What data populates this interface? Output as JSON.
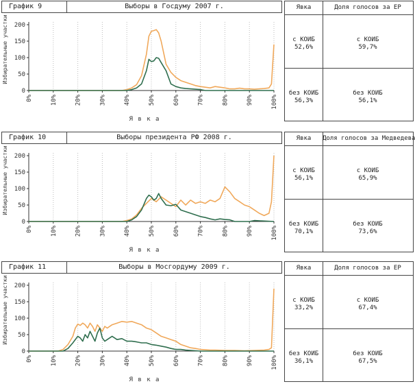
{
  "panels": [
    {
      "header": {
        "number": "График 9",
        "title": "Выборы в Госдуму 2007 г."
      },
      "table": {
        "col1_header": "Явка",
        "col2_header": "Доля голосов за ЕР",
        "rows": [
          {
            "label_turnout": "с КОИБ",
            "turnout": "52,6%",
            "label_share": "с КОИБ",
            "share": "59,7%"
          },
          {
            "label_turnout": "без КОИБ",
            "turnout": "56,3%",
            "label_share": "без КОИБ",
            "share": "56,1%"
          }
        ]
      }
    },
    {
      "header": {
        "number": "График 10",
        "title": "Выборы президента РФ 2008 г."
      },
      "table": {
        "col1_header": "Явка",
        "col2_header": "Доля голосов за Медведева",
        "rows": [
          {
            "label_turnout": "с КОИБ",
            "turnout": "56,1%",
            "label_share": "с КОИБ",
            "share": "65,9%"
          },
          {
            "label_turnout": "без КОИБ",
            "turnout": "70,1%",
            "label_share": "без КОИБ",
            "share": "73,6%"
          }
        ]
      }
    },
    {
      "header": {
        "number": "График 11",
        "title": "Выборы в Мосгордуму 2009 г."
      },
      "table": {
        "col1_header": "Явка",
        "col2_header": "Доля голосов за ЕР",
        "rows": [
          {
            "label_turnout": "с КОИБ",
            "turnout": "33,2%",
            "label_share": "с КОИБ",
            "share": "67,4%"
          },
          {
            "label_turnout": "без КОИБ",
            "turnout": "36,1%",
            "label_share": "без КОИБ",
            "share": "67,5%"
          }
        ]
      }
    }
  ],
  "colors": {
    "orange": "#f0a85a",
    "green": "#2f6e4e",
    "grid": "#bbbbbb",
    "axis": "#333333"
  },
  "chart_data": [
    {
      "type": "line",
      "ylabel": "Избирательные участки",
      "xlabel": "Я в к а",
      "xlim": [
        0,
        100
      ],
      "ylim": [
        0,
        200
      ],
      "x_ticks": [
        "0%",
        "10%",
        "20%",
        "30%",
        "40%",
        "50%",
        "60%",
        "70%",
        "80%",
        "90%",
        "100%"
      ],
      "y_ticks": [
        0,
        50,
        100,
        150,
        200
      ],
      "grid": true,
      "series": [
        {
          "color": "orange",
          "x": [
            0,
            38,
            40,
            42,
            44,
            46,
            48,
            49,
            50,
            51,
            52,
            53,
            54,
            56,
            58,
            60,
            62,
            64,
            66,
            68,
            70,
            72,
            74,
            76,
            78,
            80,
            82,
            84,
            86,
            88,
            90,
            92,
            94,
            96,
            98,
            99,
            100
          ],
          "y": [
            0,
            0,
            3,
            8,
            18,
            45,
            110,
            165,
            180,
            182,
            185,
            175,
            150,
            80,
            55,
            40,
            30,
            25,
            20,
            15,
            12,
            10,
            8,
            12,
            10,
            8,
            5,
            5,
            7,
            5,
            5,
            4,
            5,
            6,
            8,
            20,
            140
          ]
        },
        {
          "color": "green",
          "x": [
            0,
            40,
            42,
            44,
            46,
            48,
            49,
            50,
            51,
            52,
            53,
            54,
            56,
            58,
            60,
            62,
            64,
            66,
            68,
            70,
            72,
            80,
            100
          ],
          "y": [
            0,
            0,
            3,
            8,
            20,
            60,
            95,
            88,
            90,
            100,
            98,
            85,
            60,
            20,
            12,
            8,
            6,
            5,
            4,
            3,
            0,
            0,
            0
          ]
        }
      ]
    },
    {
      "type": "line",
      "ylabel": "Избирательные участки",
      "xlabel": "Я в к а",
      "xlim": [
        0,
        100
      ],
      "ylim": [
        0,
        200
      ],
      "x_ticks": [
        "0%",
        "10%",
        "20%",
        "30%",
        "40%",
        "50%",
        "60%",
        "70%",
        "80%",
        "90%",
        "100%"
      ],
      "y_ticks": [
        0,
        50,
        100,
        150,
        200
      ],
      "grid": true,
      "series": [
        {
          "color": "orange",
          "x": [
            0,
            38,
            40,
            42,
            44,
            46,
            48,
            50,
            52,
            54,
            56,
            58,
            60,
            62,
            64,
            66,
            68,
            70,
            72,
            74,
            76,
            78,
            80,
            82,
            84,
            86,
            88,
            90,
            92,
            94,
            96,
            98,
            99,
            100
          ],
          "y": [
            0,
            0,
            3,
            8,
            20,
            40,
            55,
            70,
            60,
            75,
            65,
            55,
            45,
            65,
            50,
            65,
            55,
            60,
            55,
            65,
            60,
            70,
            105,
            90,
            70,
            60,
            50,
            45,
            35,
            25,
            18,
            25,
            60,
            200
          ]
        },
        {
          "color": "green",
          "x": [
            0,
            40,
            42,
            44,
            46,
            48,
            49,
            50,
            51,
            52,
            53,
            54,
            56,
            58,
            60,
            62,
            64,
            66,
            68,
            70,
            72,
            74,
            76,
            78,
            80,
            82,
            84,
            90,
            92,
            100
          ],
          "y": [
            0,
            0,
            5,
            15,
            35,
            70,
            80,
            75,
            65,
            70,
            85,
            70,
            50,
            48,
            52,
            35,
            30,
            25,
            20,
            15,
            12,
            8,
            5,
            8,
            6,
            5,
            0,
            0,
            3,
            0
          ]
        }
      ]
    },
    {
      "type": "line",
      "ylabel": "Избирательные участки",
      "xlabel": "Я в к а",
      "xlim": [
        0,
        100
      ],
      "ylim": [
        0,
        200
      ],
      "x_ticks": [
        "0%",
        "10%",
        "20%",
        "30%",
        "40%",
        "50%",
        "60%",
        "70%",
        "80%",
        "90%",
        "100%"
      ],
      "y_ticks": [
        0,
        50,
        100,
        150,
        200
      ],
      "grid": true,
      "series": [
        {
          "color": "orange",
          "x": [
            0,
            12,
            14,
            16,
            18,
            19,
            20,
            21,
            22,
            23,
            24,
            25,
            26,
            27,
            28,
            29,
            30,
            31,
            32,
            34,
            36,
            38,
            40,
            42,
            44,
            46,
            48,
            50,
            52,
            54,
            56,
            58,
            60,
            62,
            64,
            66,
            68,
            70,
            72,
            74,
            76,
            80,
            84,
            88,
            92,
            96,
            98,
            99,
            100
          ],
          "y": [
            0,
            0,
            5,
            20,
            45,
            70,
            82,
            78,
            85,
            80,
            70,
            85,
            75,
            60,
            80,
            70,
            60,
            75,
            70,
            80,
            85,
            90,
            88,
            90,
            85,
            80,
            70,
            65,
            55,
            45,
            40,
            35,
            30,
            20,
            15,
            10,
            8,
            5,
            4,
            3,
            3,
            2,
            2,
            1,
            2,
            3,
            5,
            10,
            190
          ]
        },
        {
          "color": "green",
          "x": [
            0,
            14,
            16,
            18,
            20,
            21,
            22,
            23,
            24,
            25,
            26,
            27,
            28,
            29,
            30,
            31,
            32,
            34,
            36,
            38,
            40,
            42,
            44,
            46,
            48,
            50,
            52,
            54,
            56,
            58,
            60,
            62,
            64,
            66,
            70,
            100
          ],
          "y": [
            0,
            0,
            8,
            25,
            45,
            40,
            30,
            50,
            40,
            60,
            45,
            30,
            55,
            70,
            40,
            30,
            35,
            45,
            35,
            38,
            30,
            30,
            28,
            25,
            25,
            20,
            18,
            15,
            12,
            8,
            5,
            5,
            3,
            2,
            0,
            0
          ]
        }
      ]
    }
  ]
}
